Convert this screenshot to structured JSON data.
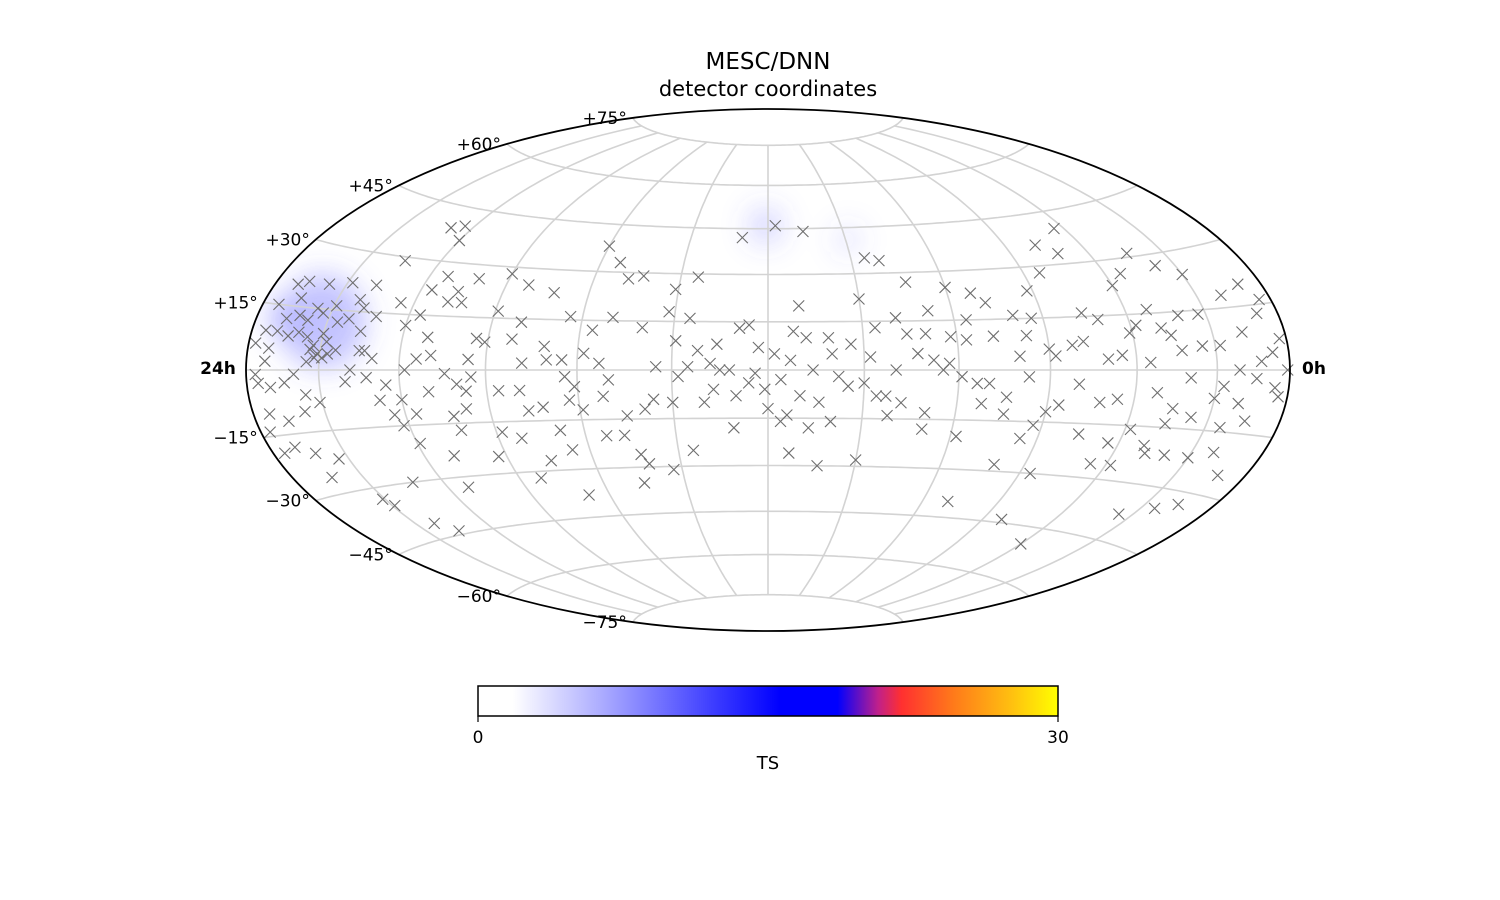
{
  "chart_data": {
    "type": "scatter",
    "projection": "hammer-aitoff",
    "title": "MESC/DNN",
    "subtitle": "detector coordinates",
    "ra_labels": {
      "left": "24h",
      "right": "0h"
    },
    "dec_ticks": [
      {
        "dec": 75,
        "label": "+75°"
      },
      {
        "dec": 60,
        "label": "+60°"
      },
      {
        "dec": 45,
        "label": "+45°"
      },
      {
        "dec": 30,
        "label": "+30°"
      },
      {
        "dec": 15,
        "label": "+15°"
      },
      {
        "dec": -15,
        "label": "−15°"
      },
      {
        "dec": -30,
        "label": "−30°"
      },
      {
        "dec": -45,
        "label": "−45°"
      },
      {
        "dec": -60,
        "label": "−60°"
      },
      {
        "dec": -75,
        "label": "−75°"
      }
    ],
    "grid": true,
    "ra_grid_step_deg": 30,
    "dec_grid_step_deg": 15,
    "colorbar": {
      "label": "TS",
      "min": 0,
      "max": 30,
      "tick_labels": [
        "0",
        "30"
      ],
      "colors": [
        "#ffffff",
        "#0000ff",
        "#ff0000",
        "#ffff00"
      ]
    },
    "marker_color": "#6e6e6e",
    "hotspots": [
      {
        "ra": 332,
        "dec": 12,
        "ts": 4.5,
        "radius_deg": 13
      },
      {
        "ra": 349,
        "dec": 12,
        "ts": 3,
        "radius_deg": 5
      },
      {
        "ra": 181,
        "dec": 46,
        "ts": 3,
        "radius_deg": 5
      },
      {
        "ra": 149,
        "dec": 41,
        "ts": 1.2,
        "radius_deg": 4
      }
    ],
    "events": [
      [
        331,
        4
      ],
      [
        333,
        6
      ],
      [
        329,
        3
      ],
      [
        334,
        5
      ],
      [
        336,
        8
      ],
      [
        328,
        7
      ],
      [
        332,
        3
      ],
      [
        335,
        2
      ],
      [
        330,
        9
      ],
      [
        327,
        4
      ],
      [
        338,
        12
      ],
      [
        326,
        12
      ],
      [
        333,
        14
      ],
      [
        336,
        15
      ],
      [
        329,
        16
      ],
      [
        340,
        9
      ],
      [
        342,
        13
      ],
      [
        324,
        5
      ],
      [
        322,
        13
      ],
      [
        344,
        8
      ],
      [
        321,
        18
      ],
      [
        345,
        17
      ],
      [
        347,
        12
      ],
      [
        337,
        21
      ],
      [
        328,
        22
      ],
      [
        316,
        10
      ],
      [
        318,
        16
      ],
      [
        349,
        9
      ],
      [
        351,
        5
      ],
      [
        346,
        21
      ],
      [
        350,
        20
      ],
      [
        353,
        15
      ],
      [
        354,
        9
      ],
      [
        352,
        2
      ],
      [
        356,
        -1
      ],
      [
        355,
        -3
      ],
      [
        357,
        6
      ],
      [
        350,
        -4
      ],
      [
        344,
        -3
      ],
      [
        340,
        -1
      ],
      [
        336,
        -6
      ],
      [
        331,
        -8
      ],
      [
        338,
        -10
      ],
      [
        346,
        -12
      ],
      [
        353,
        -10
      ],
      [
        356,
        -14
      ],
      [
        349,
        -18
      ],
      [
        355,
        -19
      ],
      [
        342,
        -20
      ],
      [
        334,
        -22
      ],
      [
        343,
        -26
      ],
      [
        331,
        -33
      ],
      [
        329,
        -35
      ],
      [
        315,
        5
      ],
      [
        313,
        5
      ],
      [
        318,
        0
      ],
      [
        312,
        -2
      ],
      [
        305,
        -4
      ],
      [
        304,
        -12
      ],
      [
        300,
        -8
      ],
      [
        302,
        -15
      ],
      [
        299,
        -20
      ],
      [
        298,
        0
      ],
      [
        294,
        3
      ],
      [
        296,
        15
      ],
      [
        291,
        9
      ],
      [
        288,
        19
      ],
      [
        283,
        19
      ],
      [
        284,
        -1
      ],
      [
        278,
        -11
      ],
      [
        283,
        -13
      ],
      [
        282,
        -17
      ],
      [
        289,
        -24
      ],
      [
        277,
        -6
      ],
      [
        275,
        -2
      ],
      [
        271,
        8
      ],
      [
        269,
        17
      ],
      [
        266,
        -6
      ],
      [
        259,
        -6
      ],
      [
        257,
        -12
      ],
      [
        252,
        -11
      ],
      [
        248,
        -18
      ],
      [
        246,
        -24
      ],
      [
        243,
        -9
      ],
      [
        241,
        -5
      ],
      [
        239,
        -12
      ],
      [
        238,
        5
      ],
      [
        236,
        12
      ],
      [
        233,
        2
      ],
      [
        230,
        -3
      ],
      [
        227,
        -20
      ],
      [
        223,
        -26
      ],
      [
        221,
        -29
      ],
      [
        225,
        -35
      ],
      [
        219,
        -12
      ],
      [
        216,
        -9
      ],
      [
        212,
        18
      ],
      [
        209,
        9
      ],
      [
        205,
        1
      ],
      [
        200,
        -10
      ],
      [
        198,
        2
      ],
      [
        195,
        0
      ],
      [
        192,
        0
      ],
      [
        191,
        -18
      ],
      [
        189,
        13
      ],
      [
        186,
        14
      ],
      [
        183,
        7
      ],
      [
        181,
        -6
      ],
      [
        180,
        -12
      ],
      [
        178,
        5
      ],
      [
        176,
        -3
      ],
      [
        173,
        3
      ],
      [
        172,
        12
      ],
      [
        168,
        10
      ],
      [
        166,
        0
      ],
      [
        164,
        -10
      ],
      [
        161,
        10
      ],
      [
        158,
        -2
      ],
      [
        155,
        -5
      ],
      [
        150,
        -4
      ],
      [
        148,
        4
      ],
      [
        146,
        -8
      ],
      [
        143,
        -8
      ],
      [
        140,
        0
      ],
      [
        138,
        -10
      ],
      [
        136,
        11
      ],
      [
        133,
        5
      ],
      [
        130,
        -13
      ],
      [
        128,
        3
      ],
      [
        125,
        0
      ],
      [
        122,
        10
      ],
      [
        119,
        -2
      ],
      [
        117,
        9
      ],
      [
        114,
        -4
      ],
      [
        112,
        -10
      ],
      [
        108,
        10
      ],
      [
        104,
        -13
      ],
      [
        100,
        4
      ],
      [
        97,
        10
      ],
      [
        93,
        -16
      ],
      [
        90,
        6
      ],
      [
        86,
        -10
      ],
      [
        82,
        7
      ],
      [
        80,
        -4
      ],
      [
        76,
        16
      ],
      [
        72,
        -9
      ],
      [
        70,
        3
      ],
      [
        66,
        -8
      ],
      [
        64,
        -20
      ],
      [
        61,
        10
      ],
      [
        58,
        -16
      ],
      [
        55,
        2
      ],
      [
        52,
        -6
      ],
      [
        49,
        11
      ],
      [
        46,
        -14
      ],
      [
        43,
        5
      ],
      [
        40,
        -2
      ],
      [
        37,
        -12
      ],
      [
        33,
        14
      ],
      [
        30,
        -7
      ],
      [
        28,
        6
      ],
      [
        24,
        -14
      ],
      [
        21,
        0
      ],
      [
        18,
        9
      ],
      [
        15,
        -12
      ],
      [
        12,
        2
      ],
      [
        9,
        13
      ],
      [
        6,
        -4
      ],
      [
        3,
        7
      ],
      [
        1,
        0
      ],
      [
        240,
        38
      ],
      [
        233,
        33
      ],
      [
        228,
        28
      ],
      [
        223,
        29
      ],
      [
        211,
        25
      ],
      [
        204,
        29
      ],
      [
        252,
        23
      ],
      [
        262,
        25
      ],
      [
        270,
        28
      ],
      [
        281,
        26
      ],
      [
        286,
        22
      ],
      [
        293,
        26
      ],
      [
        314,
        29
      ],
      [
        309,
        39
      ],
      [
        304,
        40
      ],
      [
        300,
        36
      ],
      [
        145,
        35
      ],
      [
        140,
        34
      ],
      [
        133,
        27
      ],
      [
        120,
        25
      ],
      [
        112,
        23
      ],
      [
        100,
        16
      ],
      [
        92,
        23
      ],
      [
        84,
        28
      ],
      [
        78,
        36
      ],
      [
        72,
        33
      ],
      [
        64,
        40
      ],
      [
        60,
        23
      ],
      [
        54,
        26
      ],
      [
        45,
        31
      ],
      [
        38,
        27
      ],
      [
        30,
        24
      ],
      [
        20,
        18
      ],
      [
        10,
        20
      ],
      [
        5,
        16
      ],
      [
        166,
        44
      ],
      [
        177,
        46
      ],
      [
        190,
        42
      ],
      [
        205,
        16
      ],
      [
        230,
        16
      ],
      [
        260,
        14
      ],
      [
        274,
        9
      ],
      [
        244,
        16
      ],
      [
        220,
        13
      ],
      [
        170,
        20
      ],
      [
        150,
        22
      ],
      [
        128,
        18
      ],
      [
        108,
        20
      ],
      [
        94,
        15
      ],
      [
        118,
        -20
      ],
      [
        101,
        -28
      ],
      [
        86,
        -30
      ],
      [
        76,
        -18
      ],
      [
        66,
        -26
      ],
      [
        58,
        -26
      ],
      [
        50,
        -20
      ],
      [
        40,
        -22
      ],
      [
        21,
        -20
      ],
      [
        12,
        -25
      ],
      [
        150,
        -28
      ],
      [
        163,
        -30
      ],
      [
        173,
        -26
      ],
      [
        176,
        -16
      ],
      [
        205,
        -25
      ],
      [
        213,
        -31
      ],
      [
        233,
        -20
      ],
      [
        248,
        -38
      ],
      [
        262,
        -32
      ],
      [
        273,
        -25
      ],
      [
        292,
        -33
      ],
      [
        312,
        -30
      ],
      [
        316,
        -44
      ],
      [
        322,
        -41
      ],
      [
        110,
        -40
      ],
      [
        82,
        -44
      ],
      [
        60,
        -50
      ],
      [
        36,
        -38
      ],
      [
        24,
        -35
      ],
      [
        16,
        -33
      ],
      [
        45,
        -10
      ],
      [
        48,
        -22
      ],
      [
        30,
        -22
      ],
      [
        90,
        -12
      ],
      [
        96,
        -20
      ],
      [
        130,
        -18
      ],
      [
        142,
        -14
      ],
      [
        160,
        -16
      ],
      [
        170,
        -8
      ],
      [
        186,
        -4
      ],
      [
        197,
        -6
      ],
      [
        210,
        -10
      ],
      [
        225,
        -14
      ],
      [
        245,
        3
      ],
      [
        251,
        7
      ],
      [
        258,
        2
      ],
      [
        262,
        9
      ],
      [
        280,
        -4
      ],
      [
        290,
        -6
      ],
      [
        296,
        -12
      ],
      [
        308,
        -8
      ],
      [
        310,
        3
      ],
      [
        320,
        -3
      ],
      [
        318,
        22
      ],
      [
        312,
        14
      ],
      [
        305,
        18
      ],
      [
        300,
        12
      ],
      [
        296,
        22
      ],
      [
        289,
        4
      ],
      [
        276,
        3
      ],
      [
        268,
        -18
      ],
      [
        262,
        -20
      ],
      [
        255,
        -27
      ],
      [
        250,
        3
      ],
      [
        244,
        -2
      ],
      [
        232,
        -8
      ],
      [
        215,
        1
      ],
      [
        208,
        -2
      ],
      [
        202,
        6
      ],
      [
        196,
        8
      ],
      [
        190,
        -8
      ],
      [
        184,
        -1
      ],
      [
        174,
        -14
      ],
      [
        167,
        -18
      ],
      [
        160,
        5
      ],
      [
        154,
        8
      ],
      [
        146,
        13
      ],
      [
        139,
        16
      ],
      [
        130,
        11
      ],
      [
        123,
        2
      ],
      [
        116,
        15
      ],
      [
        110,
        -4
      ],
      [
        104,
        -8
      ],
      [
        97,
        -2
      ],
      [
        88,
        4
      ],
      [
        78,
        8
      ],
      [
        71,
        14
      ],
      [
        65,
        4
      ],
      [
        58,
        12
      ],
      [
        52,
        16
      ],
      [
        46,
        9
      ],
      [
        41,
        14
      ],
      [
        35,
        6
      ],
      [
        27,
        -4
      ],
      [
        20,
        -8
      ],
      [
        14,
        -2
      ],
      [
        7,
        4
      ],
      [
        4,
        -6
      ]
    ]
  }
}
